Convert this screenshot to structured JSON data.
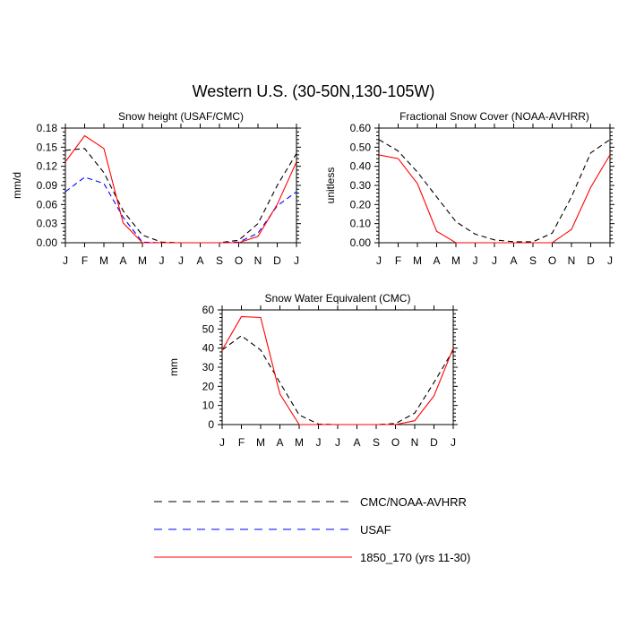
{
  "figure_title": "Western U.S. (30-50N,130-105W)",
  "months": [
    "J",
    "F",
    "M",
    "A",
    "M",
    "J",
    "J",
    "A",
    "S",
    "O",
    "N",
    "D",
    "J"
  ],
  "colors": {
    "cmc": "#000000",
    "usaf": "#0000ff",
    "model": "#ff0000"
  },
  "legend": [
    {
      "key": "cmc",
      "label": "CMC/NOAA-AVHRR",
      "style": "dashed",
      "color": "#000000"
    },
    {
      "key": "usaf",
      "label": "USAF",
      "style": "dashed",
      "color": "#0000ff"
    },
    {
      "key": "model",
      "label": "1850_170 (yrs 11-30)",
      "style": "solid",
      "color": "#ff0000"
    }
  ],
  "chart_data": [
    {
      "type": "line",
      "title": "Snow height (USAF/CMC)",
      "ylabel": "mm/d",
      "xlabel": "",
      "ylim": [
        0,
        0.18
      ],
      "yticks": [
        0,
        0.03,
        0.06,
        0.09,
        0.12,
        0.15,
        0.18
      ],
      "ytick_labels": [
        "0.00",
        "0.03",
        "0.06",
        "0.09",
        "0.12",
        "0.15",
        "0.18"
      ],
      "series": [
        {
          "name": "CMC/NOAA-AVHRR",
          "key": "cmc",
          "values": [
            0.145,
            0.148,
            0.11,
            0.05,
            0.012,
            0.001,
            0.0,
            0.0,
            0.0,
            0.004,
            0.03,
            0.09,
            0.14
          ]
        },
        {
          "name": "USAF",
          "key": "usaf",
          "values": [
            0.08,
            0.103,
            0.093,
            0.04,
            0.001,
            0.0,
            0.0,
            0.0,
            0.0,
            0.001,
            0.015,
            0.058,
            0.08
          ]
        },
        {
          "name": "1850_170 (yrs 11-30)",
          "key": "model",
          "values": [
            0.127,
            0.168,
            0.148,
            0.031,
            0.0,
            0.0,
            0.0,
            0.0,
            0.0,
            0.0,
            0.01,
            0.06,
            0.127
          ]
        }
      ]
    },
    {
      "type": "line",
      "title": "Fractional Snow Cover (NOAA-AVHRR)",
      "ylabel": "unitless",
      "xlabel": "",
      "ylim": [
        0,
        0.6
      ],
      "yticks": [
        0,
        0.1,
        0.2,
        0.3,
        0.4,
        0.5,
        0.6
      ],
      "ytick_labels": [
        "0.00",
        "0.10",
        "0.20",
        "0.30",
        "0.40",
        "0.50",
        "0.60"
      ],
      "series": [
        {
          "name": "CMC/NOAA-AVHRR",
          "key": "cmc",
          "values": [
            0.54,
            0.48,
            0.37,
            0.24,
            0.11,
            0.045,
            0.015,
            0.005,
            0.005,
            0.05,
            0.24,
            0.47,
            0.54
          ]
        },
        {
          "name": "1850_170 (yrs 11-30)",
          "key": "model",
          "values": [
            0.46,
            0.44,
            0.31,
            0.06,
            0.0,
            0.0,
            0.0,
            0.0,
            0.0,
            0.0,
            0.07,
            0.29,
            0.46
          ]
        }
      ]
    },
    {
      "type": "line",
      "title": "Snow Water Equivalent (CMC)",
      "ylabel": "mm",
      "xlabel": "",
      "ylim": [
        0,
        60
      ],
      "yticks": [
        0,
        10,
        20,
        30,
        40,
        50,
        60
      ],
      "ytick_labels": [
        "0",
        "10",
        "20",
        "30",
        "40",
        "50",
        "60"
      ],
      "series": [
        {
          "name": "CMC/NOAA-AVHRR",
          "key": "cmc",
          "values": [
            39,
            46.5,
            39,
            22,
            5,
            0.3,
            0.0,
            0.0,
            0.0,
            0.5,
            6,
            22,
            39
          ]
        },
        {
          "name": "1850_170 (yrs 11-30)",
          "key": "model",
          "values": [
            39,
            56.5,
            56,
            16,
            0.0,
            0.0,
            0.0,
            0.0,
            0.0,
            0.0,
            2,
            15,
            40
          ]
        }
      ]
    }
  ]
}
